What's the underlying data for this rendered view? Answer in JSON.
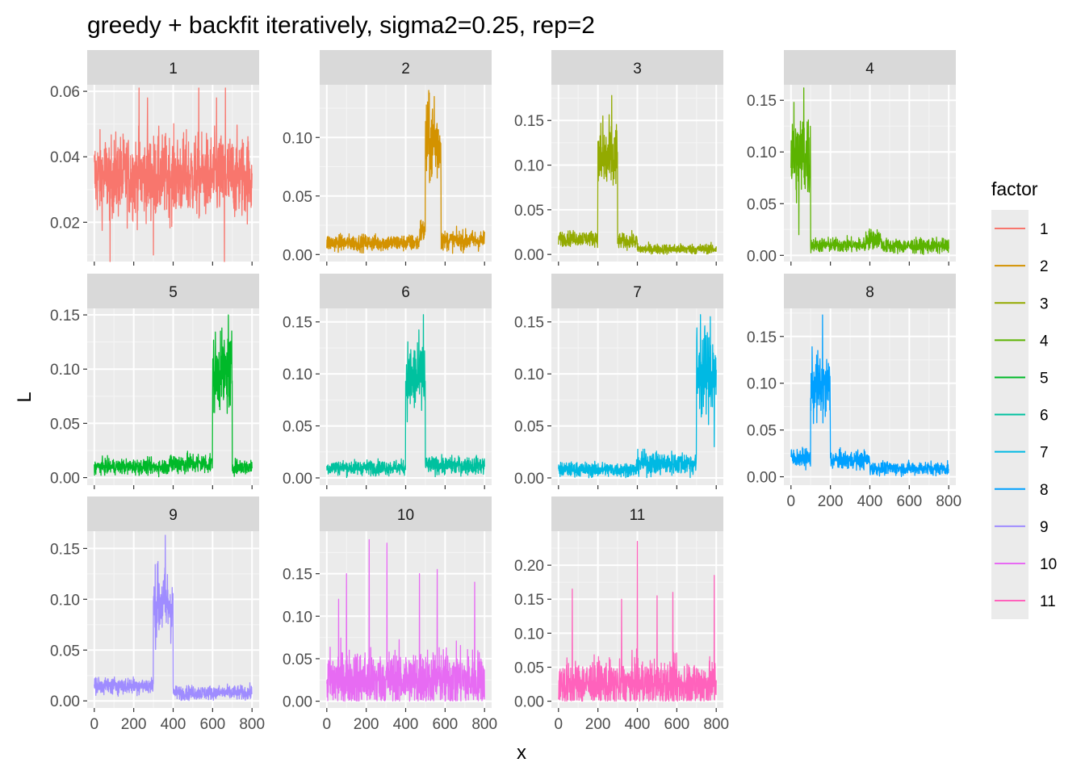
{
  "chart_data": {
    "type": "line",
    "title": "greedy + backfit iteratively, sigma2=0.25, rep=2",
    "xlabel": "x",
    "ylabel": "L",
    "grid": true,
    "legend_position": "right",
    "legend": {
      "title": "factor",
      "entries": [
        "1",
        "2",
        "3",
        "4",
        "5",
        "6",
        "7",
        "8",
        "9",
        "10",
        "11"
      ]
    },
    "x_range": [
      0,
      800
    ],
    "x_ticks": [
      0,
      200,
      400,
      600,
      800
    ],
    "panels": [
      {
        "label": "1",
        "color": "#F8766D",
        "ylim": [
          0.008,
          0.062
        ],
        "y_ticks": [
          0.02,
          0.04,
          0.06
        ],
        "y_tick_labels": [
          "0.02",
          "0.04",
          "0.06"
        ],
        "show_x_axis": false,
        "segments": [
          {
            "x0": 0,
            "x1": 800,
            "mean": 0.034,
            "spread": 0.009
          }
        ],
        "spikes": [
          [
            227,
            0.061
          ],
          [
            530,
            0.061
          ],
          [
            665,
            0.061
          ],
          [
            270,
            0.058
          ],
          [
            620,
            0.058
          ],
          [
            80,
            0.008
          ],
          [
            660,
            0.008
          ],
          [
            300,
            0.01
          ]
        ]
      },
      {
        "label": "2",
        "color": "#D39200",
        "ylim": [
          -0.006,
          0.145
        ],
        "y_ticks": [
          0.0,
          0.05,
          0.1
        ],
        "y_tick_labels": [
          "0.00",
          "0.05",
          "0.10"
        ],
        "show_x_axis": false,
        "segments": [
          {
            "x0": 0,
            "x1": 470,
            "mean": 0.01,
            "spread": 0.005
          },
          {
            "x0": 470,
            "x1": 500,
            "mean": 0.02,
            "spread": 0.008
          },
          {
            "x0": 500,
            "x1": 580,
            "mean": 0.095,
            "spread": 0.025
          },
          {
            "x0": 580,
            "x1": 800,
            "mean": 0.012,
            "spread": 0.006
          }
        ],
        "spikes": [
          [
            520,
            0.138
          ],
          [
            545,
            0.135
          ]
        ]
      },
      {
        "label": "3",
        "color": "#93AA00",
        "ylim": [
          -0.008,
          0.19
        ],
        "y_ticks": [
          0.0,
          0.05,
          0.1,
          0.15
        ],
        "y_tick_labels": [
          "0.00",
          "0.05",
          "0.10",
          "0.15"
        ],
        "show_x_axis": false,
        "segments": [
          {
            "x0": 0,
            "x1": 200,
            "mean": 0.018,
            "spread": 0.006
          },
          {
            "x0": 200,
            "x1": 300,
            "mean": 0.105,
            "spread": 0.03
          },
          {
            "x0": 300,
            "x1": 400,
            "mean": 0.015,
            "spread": 0.006
          },
          {
            "x0": 400,
            "x1": 800,
            "mean": 0.006,
            "spread": 0.004
          }
        ],
        "spikes": [
          [
            270,
            0.178
          ],
          [
            225,
            0.155
          ]
        ]
      },
      {
        "label": "4",
        "color": "#5BB300",
        "ylim": [
          -0.006,
          0.165
        ],
        "y_ticks": [
          0.0,
          0.05,
          0.1,
          0.15
        ],
        "y_tick_labels": [
          "0.00",
          "0.05",
          "0.10",
          "0.15"
        ],
        "show_x_axis": false,
        "segments": [
          {
            "x0": 0,
            "x1": 100,
            "mean": 0.095,
            "spread": 0.03
          },
          {
            "x0": 100,
            "x1": 380,
            "mean": 0.01,
            "spread": 0.005
          },
          {
            "x0": 380,
            "x1": 460,
            "mean": 0.016,
            "spread": 0.007
          },
          {
            "x0": 460,
            "x1": 800,
            "mean": 0.009,
            "spread": 0.005
          }
        ],
        "spikes": [
          [
            65,
            0.162
          ],
          [
            15,
            0.148
          ],
          [
            40,
            0.02
          ]
        ]
      },
      {
        "label": "5",
        "color": "#00B929",
        "ylim": [
          -0.007,
          0.156
        ],
        "y_ticks": [
          0.0,
          0.05,
          0.1,
          0.15
        ],
        "y_tick_labels": [
          "0.00",
          "0.05",
          "0.10",
          "0.15"
        ],
        "show_x_axis": false,
        "segments": [
          {
            "x0": 0,
            "x1": 380,
            "mean": 0.01,
            "spread": 0.005
          },
          {
            "x0": 380,
            "x1": 600,
            "mean": 0.013,
            "spread": 0.007
          },
          {
            "x0": 600,
            "x1": 700,
            "mean": 0.095,
            "spread": 0.025
          },
          {
            "x0": 700,
            "x1": 800,
            "mean": 0.01,
            "spread": 0.005
          }
        ],
        "spikes": [
          [
            680,
            0.15
          ],
          [
            640,
            0.135
          ]
        ]
      },
      {
        "label": "6",
        "color": "#00C19F",
        "ylim": [
          -0.007,
          0.163
        ],
        "y_ticks": [
          0.0,
          0.05,
          0.1,
          0.15
        ],
        "y_tick_labels": [
          "0.00",
          "0.05",
          "0.10",
          "0.15"
        ],
        "show_x_axis": false,
        "segments": [
          {
            "x0": 0,
            "x1": 400,
            "mean": 0.01,
            "spread": 0.005
          },
          {
            "x0": 400,
            "x1": 500,
            "mean": 0.095,
            "spread": 0.025
          },
          {
            "x0": 500,
            "x1": 800,
            "mean": 0.012,
            "spread": 0.006
          }
        ],
        "spikes": [
          [
            490,
            0.157
          ],
          [
            460,
            0.13
          ]
        ]
      },
      {
        "label": "7",
        "color": "#00B9E3",
        "ylim": [
          -0.007,
          0.163
        ],
        "y_ticks": [
          0.0,
          0.05,
          0.1,
          0.15
        ],
        "y_tick_labels": [
          "0.00",
          "0.05",
          "0.10",
          "0.15"
        ],
        "show_x_axis": false,
        "segments": [
          {
            "x0": 0,
            "x1": 400,
            "mean": 0.008,
            "spread": 0.005
          },
          {
            "x0": 400,
            "x1": 700,
            "mean": 0.014,
            "spread": 0.008
          },
          {
            "x0": 700,
            "x1": 800,
            "mean": 0.1,
            "spread": 0.03
          }
        ],
        "spikes": [
          [
            720,
            0.157
          ],
          [
            770,
            0.155
          ],
          [
            790,
            0.03
          ]
        ]
      },
      {
        "label": "8",
        "color": "#00A0FF",
        "ylim": [
          -0.009,
          0.18
        ],
        "y_ticks": [
          0.0,
          0.05,
          0.1,
          0.15
        ],
        "y_tick_labels": [
          "0.00",
          "0.05",
          "0.10",
          "0.15"
        ],
        "show_x_axis": true,
        "segments": [
          {
            "x0": 0,
            "x1": 100,
            "mean": 0.02,
            "spread": 0.007
          },
          {
            "x0": 100,
            "x1": 200,
            "mean": 0.095,
            "spread": 0.025
          },
          {
            "x0": 200,
            "x1": 400,
            "mean": 0.018,
            "spread": 0.007
          },
          {
            "x0": 400,
            "x1": 800,
            "mean": 0.009,
            "spread": 0.005
          }
        ],
        "spikes": [
          [
            160,
            0.173
          ],
          [
            130,
            0.13
          ]
        ]
      },
      {
        "label": "9",
        "color": "#9F8CFF",
        "ylim": [
          -0.007,
          0.167
        ],
        "y_ticks": [
          0.0,
          0.05,
          0.1,
          0.15
        ],
        "y_tick_labels": [
          "0.00",
          "0.05",
          "0.10",
          "0.15"
        ],
        "show_x_axis": true,
        "segments": [
          {
            "x0": 0,
            "x1": 300,
            "mean": 0.015,
            "spread": 0.006
          },
          {
            "x0": 300,
            "x1": 400,
            "mean": 0.095,
            "spread": 0.025
          },
          {
            "x0": 400,
            "x1": 800,
            "mean": 0.008,
            "spread": 0.005
          }
        ],
        "spikes": [
          [
            360,
            0.163
          ],
          [
            320,
            0.135
          ]
        ]
      },
      {
        "label": "10",
        "color": "#E76BF3",
        "ylim": [
          -0.008,
          0.2
        ],
        "y_ticks": [
          0.0,
          0.05,
          0.1,
          0.15
        ],
        "y_tick_labels": [
          "0.00",
          "0.05",
          "0.10",
          "0.15"
        ],
        "show_x_axis": true,
        "segments": [
          {
            "x0": 0,
            "x1": 800,
            "mean": 0.025,
            "spread": 0.025
          }
        ],
        "spikes": [
          [
            215,
            0.19
          ],
          [
            305,
            0.186
          ],
          [
            560,
            0.155
          ],
          [
            100,
            0.15
          ],
          [
            470,
            0.15
          ],
          [
            60,
            0.12
          ],
          [
            750,
            0.14
          ]
        ]
      },
      {
        "label": "11",
        "color": "#FF62BC",
        "ylim": [
          -0.01,
          0.25
        ],
        "y_ticks": [
          0.0,
          0.05,
          0.1,
          0.15,
          0.2
        ],
        "y_tick_labels": [
          "0.00",
          "0.05",
          "0.10",
          "0.15",
          "0.20"
        ],
        "show_x_axis": true,
        "segments": [
          {
            "x0": 0,
            "x1": 800,
            "mean": 0.025,
            "spread": 0.025
          }
        ],
        "spikes": [
          [
            400,
            0.235
          ],
          [
            790,
            0.185
          ],
          [
            70,
            0.165
          ],
          [
            580,
            0.16
          ],
          [
            320,
            0.15
          ],
          [
            500,
            0.155
          ]
        ]
      }
    ]
  }
}
